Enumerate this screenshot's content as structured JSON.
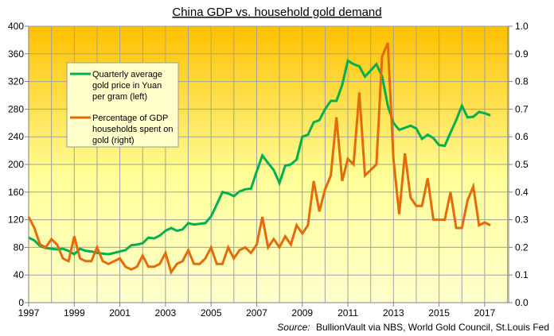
{
  "chart_data": {
    "type": "line",
    "title": "China GDP vs. household gold demand",
    "source": "BullionVault via NBS, World Gold Council, St.Louis Fed",
    "source_prefix": "Source:",
    "xlabel": "",
    "ylabel_left": "",
    "ylabel_right": "",
    "x_start": 1997,
    "x_step_years": 0.25,
    "x_range": [
      1997,
      2018.05
    ],
    "x_ticks": [
      "1997",
      "1999",
      "2001",
      "2003",
      "2005",
      "2007",
      "2009",
      "2011",
      "2013",
      "2015",
      "2017"
    ],
    "ylim_left": [
      0,
      400
    ],
    "ylim_right": [
      0,
      1.0
    ],
    "y_ticks_left": [
      "0",
      "40",
      "80",
      "120",
      "160",
      "200",
      "240",
      "280",
      "320",
      "360",
      "400"
    ],
    "y_ticks_right": [
      "0.0",
      "0.1",
      "0.2",
      "0.3",
      "0.4",
      "0.5",
      "0.6",
      "0.7",
      "0.8",
      "0.9",
      "1.0"
    ],
    "grid": true,
    "legend_placement": "top-left",
    "background_gradient": [
      "#ffc000",
      "#ffff99",
      "#ffffcc"
    ],
    "series": [
      {
        "name": "Quarterly average gold price in Yuan per gram (left)",
        "axis": "left",
        "color": "#00b050",
        "values": [
          94,
          90,
          82,
          79,
          78,
          77,
          78,
          75,
          70,
          78,
          75,
          74,
          72,
          71,
          70,
          72,
          74,
          76,
          83,
          84,
          86,
          94,
          93,
          97,
          104,
          108,
          104,
          106,
          115,
          113,
          114,
          115,
          125,
          142,
          160,
          158,
          154,
          161,
          164,
          165,
          190,
          213,
          202,
          192,
          173,
          198,
          200,
          207,
          240,
          243,
          261,
          264,
          280,
          292,
          292,
          315,
          350,
          345,
          342,
          327,
          336,
          345,
          328,
          285,
          260,
          250,
          253,
          256,
          252,
          237,
          243,
          238,
          228,
          227,
          246,
          264,
          285,
          268,
          269,
          276,
          274,
          271
        ]
      },
      {
        "name": "Percentage of GDP households spent on gold (right)",
        "axis": "right",
        "color": "#e36c0a",
        "values": [
          0.31,
          0.27,
          0.21,
          0.2,
          0.23,
          0.21,
          0.16,
          0.15,
          0.24,
          0.16,
          0.15,
          0.15,
          0.2,
          0.15,
          0.14,
          0.15,
          0.16,
          0.13,
          0.12,
          0.13,
          0.17,
          0.13,
          0.13,
          0.14,
          0.18,
          0.11,
          0.14,
          0.15,
          0.19,
          0.14,
          0.14,
          0.16,
          0.2,
          0.14,
          0.14,
          0.2,
          0.16,
          0.19,
          0.2,
          0.18,
          0.21,
          0.31,
          0.2,
          0.23,
          0.2,
          0.24,
          0.21,
          0.28,
          0.25,
          0.28,
          0.44,
          0.33,
          0.41,
          0.46,
          0.67,
          0.44,
          0.52,
          0.5,
          0.76,
          0.46,
          0.48,
          0.5,
          0.89,
          0.94,
          0.52,
          0.32,
          0.54,
          0.38,
          0.35,
          0.35,
          0.45,
          0.3,
          0.3,
          0.3,
          0.4,
          0.27,
          0.27,
          0.37,
          0.42,
          0.28,
          0.29,
          0.28
        ]
      }
    ],
    "legend": [
      {
        "lines": [
          "Quarterly average",
          "gold price in Yuan",
          "per gram (left)"
        ],
        "color": "#00b050"
      },
      {
        "lines": [
          "Percentage of GDP",
          "households spent on",
          "gold (right)"
        ],
        "color": "#e36c0a"
      }
    ]
  }
}
